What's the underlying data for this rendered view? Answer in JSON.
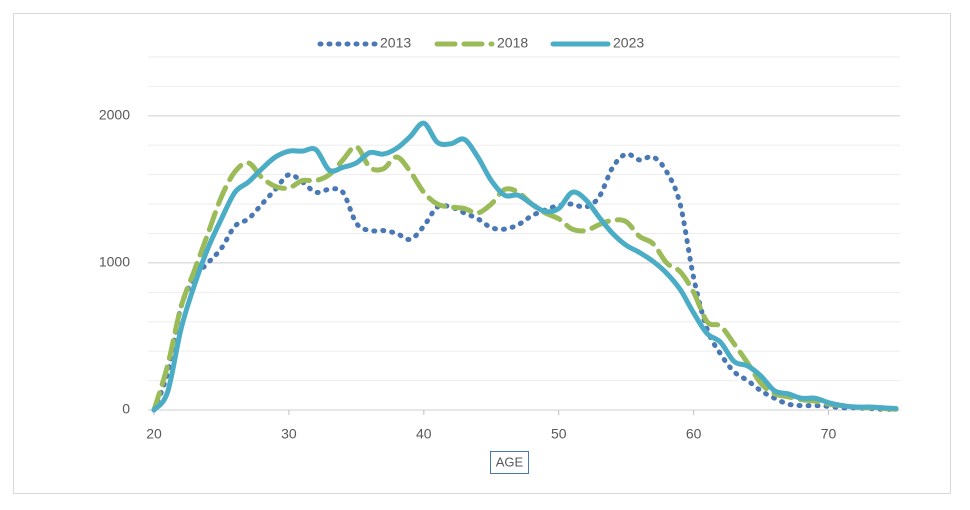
{
  "chart_data": {
    "type": "line",
    "x_label": "AGE",
    "x": [
      20,
      21,
      22,
      23,
      24,
      25,
      26,
      27,
      28,
      29,
      30,
      31,
      32,
      33,
      34,
      35,
      36,
      37,
      38,
      39,
      40,
      41,
      42,
      43,
      44,
      45,
      46,
      47,
      48,
      49,
      50,
      51,
      52,
      53,
      54,
      55,
      56,
      57,
      58,
      59,
      60,
      61,
      62,
      63,
      64,
      65,
      66,
      67,
      68,
      69,
      70,
      71,
      72,
      73,
      74,
      75
    ],
    "series": [
      {
        "name": "2013",
        "color": "#4a78b5",
        "style": "dotted",
        "values": [
          0,
          250,
          700,
          900,
          1000,
          1100,
          1250,
          1300,
          1400,
          1500,
          1600,
          1550,
          1480,
          1500,
          1480,
          1270,
          1220,
          1220,
          1200,
          1160,
          1250,
          1380,
          1380,
          1340,
          1300,
          1240,
          1230,
          1260,
          1320,
          1360,
          1390,
          1400,
          1380,
          1450,
          1650,
          1740,
          1700,
          1720,
          1620,
          1400,
          900,
          550,
          380,
          260,
          200,
          130,
          80,
          40,
          30,
          30,
          25,
          15,
          15,
          10,
          5,
          5
        ]
      },
      {
        "name": "2018",
        "color": "#9bbb59",
        "style": "dashed",
        "values": [
          0,
          300,
          700,
          950,
          1200,
          1450,
          1620,
          1680,
          1580,
          1520,
          1510,
          1560,
          1560,
          1600,
          1700,
          1790,
          1650,
          1640,
          1720,
          1620,
          1480,
          1400,
          1380,
          1370,
          1340,
          1400,
          1500,
          1480,
          1400,
          1340,
          1300,
          1230,
          1220,
          1260,
          1290,
          1280,
          1180,
          1130,
          1000,
          940,
          800,
          600,
          570,
          450,
          320,
          180,
          110,
          90,
          70,
          60,
          40,
          30,
          20,
          15,
          10,
          5
        ]
      },
      {
        "name": "2023",
        "color": "#4bacc6",
        "style": "solid",
        "values": [
          0,
          120,
          550,
          850,
          1100,
          1300,
          1480,
          1550,
          1640,
          1720,
          1760,
          1760,
          1770,
          1630,
          1650,
          1680,
          1750,
          1740,
          1780,
          1860,
          1950,
          1820,
          1810,
          1840,
          1720,
          1560,
          1460,
          1460,
          1400,
          1350,
          1370,
          1480,
          1430,
          1310,
          1200,
          1120,
          1070,
          1010,
          930,
          820,
          660,
          520,
          460,
          330,
          300,
          230,
          130,
          110,
          80,
          80,
          50,
          30,
          20,
          20,
          15,
          10
        ]
      }
    ],
    "xlim": [
      20,
      75
    ],
    "xticks": [
      20,
      30,
      40,
      50,
      60,
      70
    ],
    "ylim": [
      0,
      2400
    ],
    "yticks": [
      0,
      1000,
      2000
    ],
    "minor_yticks": [
      200,
      400,
      600,
      800,
      1200,
      1400,
      1600,
      1800,
      2200,
      2400
    ],
    "grid": true,
    "legend": "top"
  }
}
